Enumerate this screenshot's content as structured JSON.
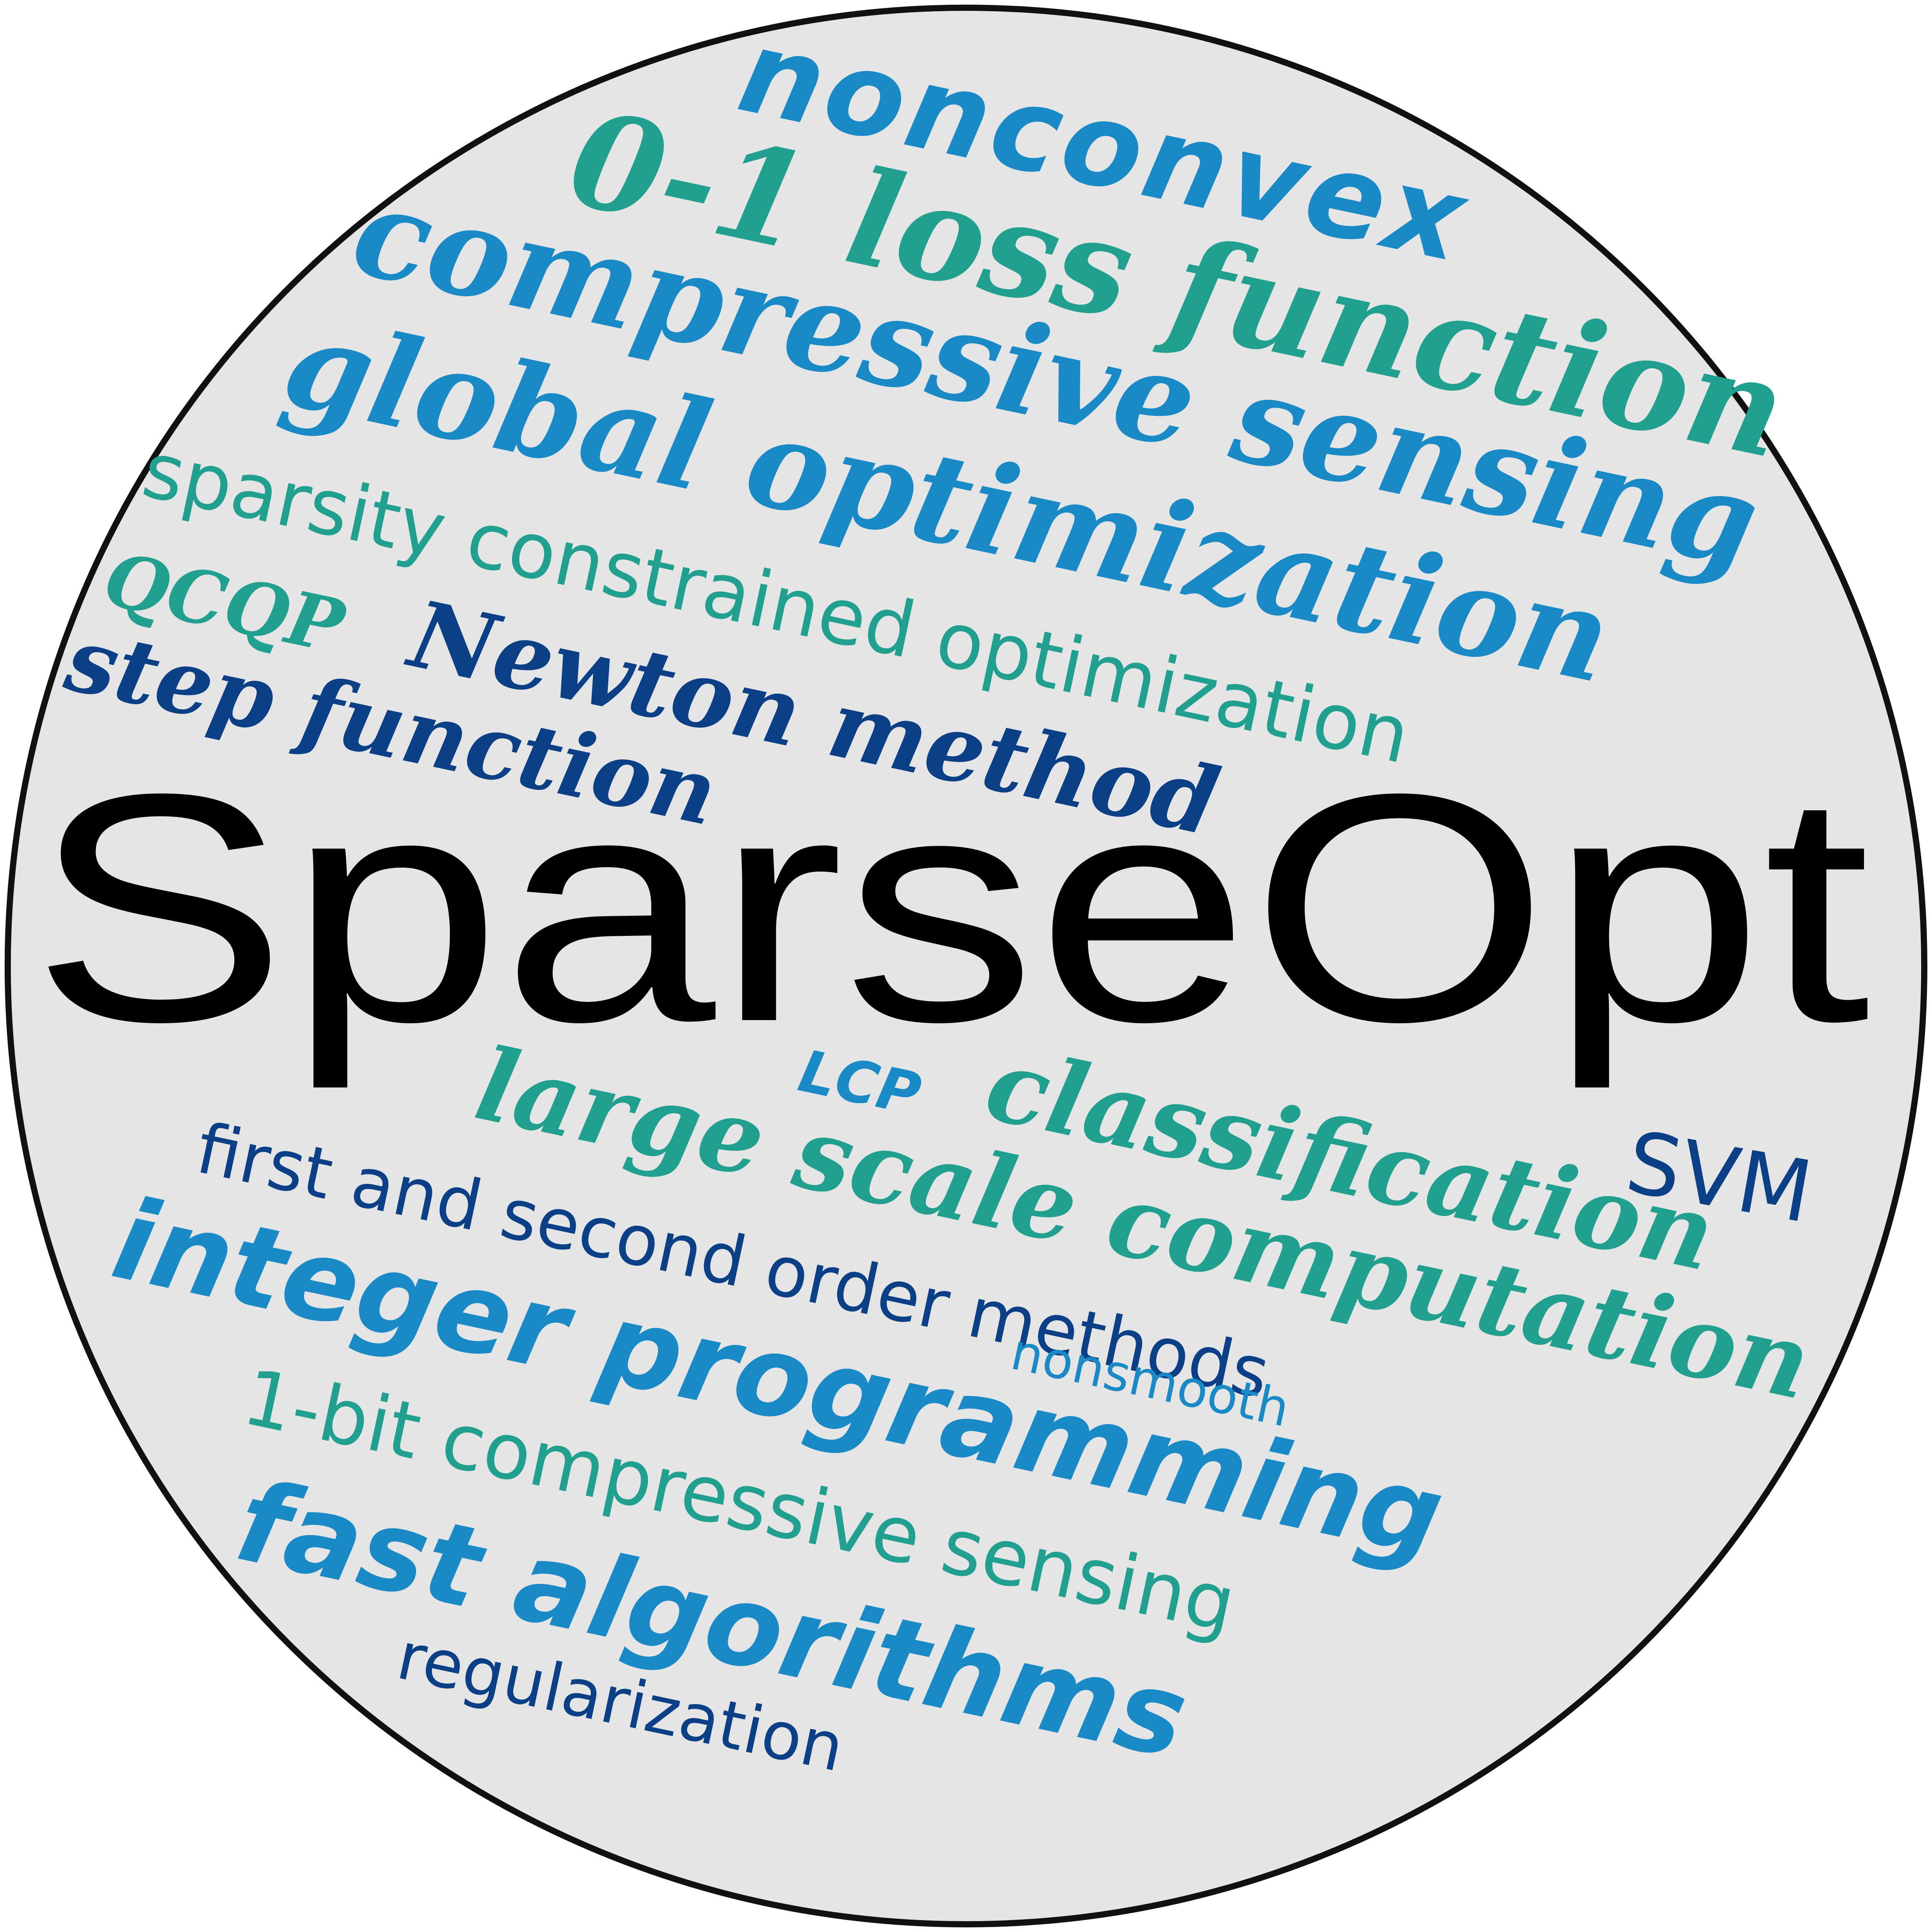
{
  "colors": {
    "background_circle": "#e5e5e5",
    "circle_border": "#111111",
    "blue": "#1a8ac6",
    "teal": "#21a08f",
    "navy": "#0b3f86",
    "black": "#000000"
  },
  "words": {
    "nonconvex": "nonconvex",
    "zero_one_loss_function": "0-1 loss function",
    "compressive_sensing": "compressive sensing",
    "global_optimization": "global optimization",
    "sparsity_constrained_optimization": "sparsity constrained optimization",
    "qcqp": "QCQP",
    "newton_method": "Newton method",
    "step_function": "step function",
    "sparseopt": "SparseOpt",
    "svm": "SVM",
    "lcp": "LCP",
    "classification": "classification",
    "large_scale_computation": "large scale computation",
    "first_and_second_order_methods": "first and second order methods",
    "integer_programming": "integer programming",
    "nonsmooth": "nonsmooth",
    "one_bit_compressive_sensing": "1-bit compressive sensing",
    "fast_algorithms": "fast algorithms",
    "regularization": "regularization"
  }
}
